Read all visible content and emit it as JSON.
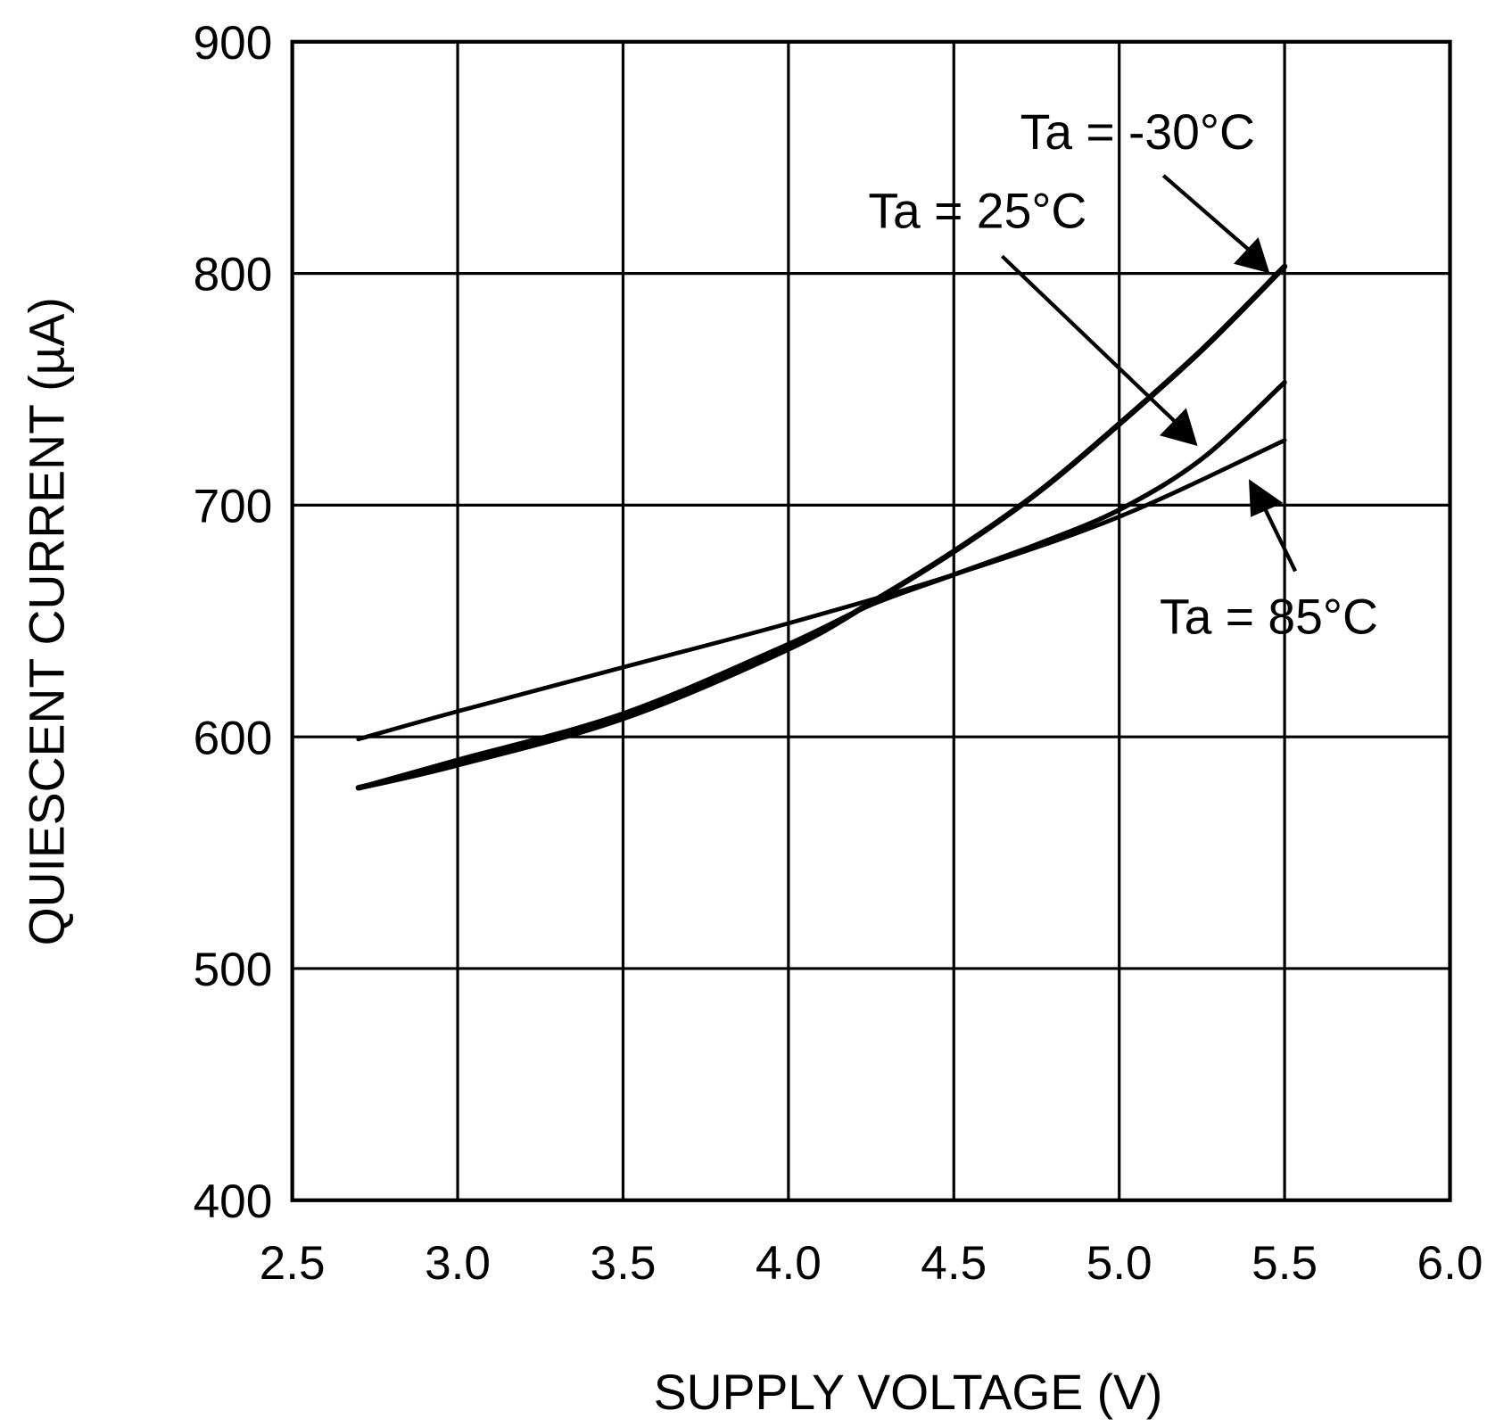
{
  "chart_data": {
    "type": "line",
    "title": "",
    "xlabel": "SUPPLY VOLTAGE (V)",
    "ylabel": "QUIESCENT CURRENT (µA)",
    "xlim": [
      2.5,
      6.0
    ],
    "ylim": [
      400,
      900
    ],
    "xticks": [
      "2.5",
      "3.0",
      "3.5",
      "4.0",
      "4.5",
      "5.0",
      "5.5",
      "6.0"
    ],
    "yticks": [
      "400",
      "500",
      "600",
      "700",
      "800",
      "900"
    ],
    "grid": true,
    "series": [
      {
        "name": "Ta = -30°C",
        "x": [
          2.7,
          3.0,
          3.5,
          4.0,
          4.25,
          4.5,
          4.75,
          5.0,
          5.25,
          5.5
        ],
        "y": [
          578,
          588,
          608,
          638,
          658,
          680,
          705,
          735,
          767,
          803
        ]
      },
      {
        "name": "Ta = 25°C",
        "x": [
          2.7,
          3.0,
          3.5,
          4.0,
          4.25,
          4.5,
          4.75,
          5.0,
          5.25,
          5.5
        ],
        "y": [
          578,
          590,
          610,
          640,
          657,
          670,
          683,
          698,
          720,
          753
        ]
      },
      {
        "name": "Ta = 85°C",
        "x": [
          2.7,
          3.0,
          3.5,
          4.0,
          4.5,
          5.0,
          5.5
        ],
        "y": [
          599,
          611,
          630,
          649,
          670,
          695,
          728
        ]
      }
    ],
    "annotations": [
      "Ta = -30°C",
      "Ta = 25°C",
      "Ta = 85°C"
    ]
  }
}
